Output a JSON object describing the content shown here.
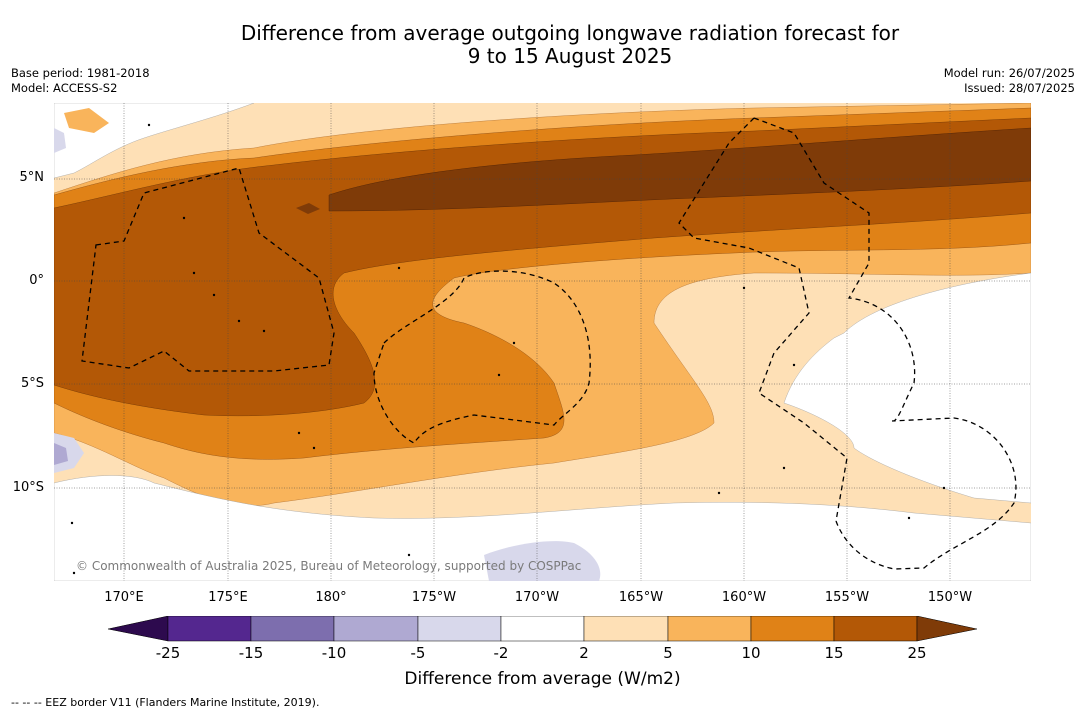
{
  "title_line1": "Difference from average outgoing longwave radiation forecast for",
  "title_line2": "9 to 15 August 2025",
  "meta": {
    "base_period": "Base period: 1981-2018",
    "model": "Model: ACCESS-S2",
    "model_run": "Model run: 26/07/2025",
    "issued": "Issued: 28/07/2025"
  },
  "lat_labels": [
    "5°N",
    "0°",
    "5°S",
    "10°S"
  ],
  "lon_labels": [
    "170°E",
    "175°E",
    "180°",
    "175°W",
    "170°W",
    "165°W",
    "160°W",
    "155°W",
    "150°W"
  ],
  "copyright": "© Commonwealth of Australia 2025, Bureau of Meteorology, supported by COSPPac",
  "colorbar": {
    "ticks": [
      "-25",
      "-15",
      "-10",
      "-5",
      "-2",
      "2",
      "5",
      "10",
      "15",
      "25"
    ],
    "colors": [
      "#2d0a4e",
      "#54278f",
      "#7d6eae",
      "#afa9d2",
      "#d8d8eb",
      "#ffffff",
      "#fee0b6",
      "#f9b45b",
      "#e08217",
      "#b35806",
      "#7f3b08"
    ],
    "title": "Difference from average (W/m2)"
  },
  "footnote": "--  --  -- EEZ border V11 (Flanders Marine Institute, 2019)."
}
